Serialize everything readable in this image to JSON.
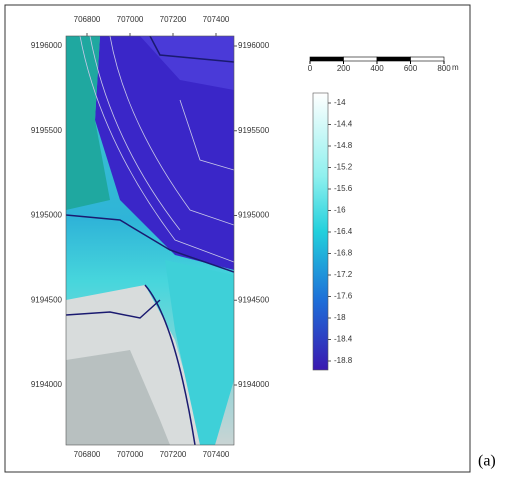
{
  "map": {
    "xticks": [
      706800,
      707000,
      707200,
      707400
    ],
    "yticks": [
      9196000,
      9195500,
      9195000,
      9194500,
      9194000
    ],
    "scale_bar": {
      "ticks": [
        0,
        200,
        400,
        600,
        800
      ],
      "unit": "m"
    },
    "colorbar": {
      "ticks": [
        -14,
        -14.4,
        -14.8,
        -15.2,
        -15.6,
        -16,
        -16.4,
        -16.8,
        -17.2,
        -17.6,
        -18,
        -18.4,
        -18.8
      ]
    }
  },
  "caption": "(a)"
}
